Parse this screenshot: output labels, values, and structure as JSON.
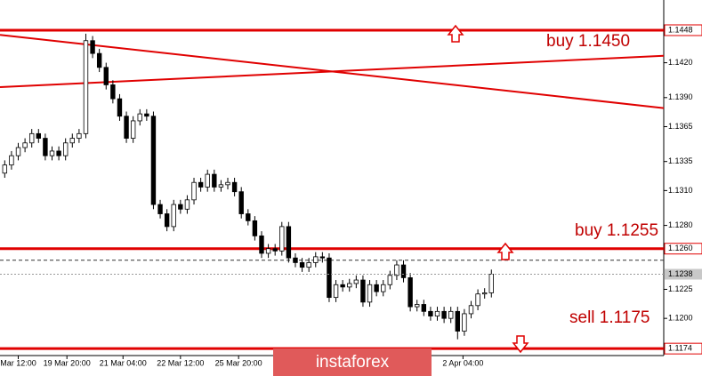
{
  "chart_data": {
    "type": "candlestick",
    "open": [
      1.1325,
      1.1332,
      1.134,
      1.1347,
      1.1351,
      1.1359,
      1.1355,
      1.134,
      1.1344,
      1.134,
      1.1351,
      1.1355,
      1.1359,
      1.1439,
      1.1428,
      1.1416,
      1.1401,
      1.1389,
      1.1374,
      1.1355,
      1.137,
      1.1376,
      1.1374,
      1.1298,
      1.129,
      1.1279,
      1.1298,
      1.1294,
      1.1302,
      1.1317,
      1.1313,
      1.1324,
      1.1313,
      1.1315,
      1.1317,
      1.1309,
      1.129,
      1.1284,
      1.1271,
      1.1256,
      1.126,
      1.1258,
      1.1279,
      1.1252,
      1.1248,
      1.1244,
      1.1248,
      1.1253,
      1.1252,
      1.1218,
      1.1229,
      1.1227,
      1.123,
      1.1233,
      1.1214,
      1.1229,
      1.1223,
      1.1229,
      1.1237,
      1.1246,
      1.1235,
      1.121,
      1.1212,
      1.1206,
      1.1202,
      1.1206,
      1.12,
      1.1206,
      1.1189,
      1.1204,
      1.1211,
      1.1221,
      1.1222
    ],
    "high": [
      1.1336,
      1.1344,
      1.1351,
      1.1355,
      1.1363,
      1.1363,
      1.1359,
      1.1348,
      1.1348,
      1.1355,
      1.1359,
      1.1363,
      1.1445,
      1.1443,
      1.1432,
      1.142,
      1.1405,
      1.1393,
      1.1378,
      1.1374,
      1.138,
      1.138,
      1.1378,
      1.1302,
      1.1294,
      1.1302,
      1.1302,
      1.1306,
      1.1321,
      1.1321,
      1.1328,
      1.1328,
      1.1319,
      1.1321,
      1.1321,
      1.1313,
      1.1294,
      1.1288,
      1.1275,
      1.1264,
      1.1264,
      1.1283,
      1.1283,
      1.1256,
      1.1252,
      1.1252,
      1.1257,
      1.1257,
      1.1256,
      1.1233,
      1.1233,
      1.1234,
      1.1237,
      1.1237,
      1.1233,
      1.1233,
      1.1233,
      1.1241,
      1.125,
      1.125,
      1.1239,
      1.1216,
      1.1216,
      1.121,
      1.121,
      1.121,
      1.121,
      1.121,
      1.1208,
      1.1215,
      1.1225,
      1.1226,
      1.1242
    ],
    "low": [
      1.1321,
      1.1328,
      1.1336,
      1.1343,
      1.1347,
      1.1351,
      1.1336,
      1.1336,
      1.1336,
      1.1336,
      1.1347,
      1.1351,
      1.1355,
      1.1424,
      1.1412,
      1.1397,
      1.1385,
      1.137,
      1.1351,
      1.1351,
      1.1366,
      1.137,
      1.1294,
      1.1286,
      1.1275,
      1.1275,
      1.129,
      1.129,
      1.1298,
      1.1309,
      1.1309,
      1.1309,
      1.1309,
      1.1311,
      1.1305,
      1.1286,
      1.128,
      1.1267,
      1.1252,
      1.1252,
      1.1254,
      1.1254,
      1.1248,
      1.1244,
      1.124,
      1.124,
      1.1244,
      1.1248,
      1.1214,
      1.1214,
      1.1223,
      1.1223,
      1.1226,
      1.121,
      1.121,
      1.1219,
      1.1219,
      1.1225,
      1.1233,
      1.1231,
      1.1206,
      1.1206,
      1.1202,
      1.1198,
      1.1198,
      1.1196,
      1.1196,
      1.1182,
      1.1185,
      1.12,
      1.1207,
      1.1217,
      1.1218
    ],
    "close": [
      1.1332,
      1.134,
      1.1347,
      1.1351,
      1.1359,
      1.1355,
      1.134,
      1.1344,
      1.134,
      1.1351,
      1.1355,
      1.1359,
      1.1439,
      1.1428,
      1.1416,
      1.1401,
      1.1389,
      1.1374,
      1.1355,
      1.137,
      1.1376,
      1.1374,
      1.1298,
      1.129,
      1.1279,
      1.1298,
      1.1294,
      1.1302,
      1.1317,
      1.1313,
      1.1324,
      1.1313,
      1.1315,
      1.1317,
      1.1309,
      1.129,
      1.1284,
      1.1271,
      1.1256,
      1.126,
      1.1258,
      1.1279,
      1.1252,
      1.1248,
      1.1244,
      1.1248,
      1.1253,
      1.1252,
      1.1218,
      1.1229,
      1.1227,
      1.123,
      1.1233,
      1.1214,
      1.1229,
      1.1223,
      1.1229,
      1.1237,
      1.1246,
      1.1235,
      1.121,
      1.1212,
      1.1206,
      1.1202,
      1.1206,
      1.12,
      1.1206,
      1.1189,
      1.1204,
      1.1211,
      1.1221,
      1.1222,
      1.1238
    ],
    "xlim": [
      -0.7,
      97.5
    ],
    "xticks": [
      {
        "value": 2,
        "label": "Mar 12:00"
      },
      {
        "value": 9.2,
        "label": "19 Mar 20:00"
      },
      {
        "value": 17.5,
        "label": "21 Mar 04:00"
      },
      {
        "value": 26,
        "label": "22 Mar 12:00"
      },
      {
        "value": 34.6,
        "label": "25 Mar 20:00"
      },
      {
        "value": 67.8,
        "label": "2 Apr 04:00"
      }
    ],
    "ylim": [
      1.1168,
      1.1474
    ],
    "yticks": [
      {
        "value": 1.142,
        "label": "1.1420"
      },
      {
        "value": 1.139,
        "label": "1.1390"
      },
      {
        "value": 1.1365,
        "label": "1.1365"
      },
      {
        "value": 1.1335,
        "label": "1.1335"
      },
      {
        "value": 1.131,
        "label": "1.1310"
      },
      {
        "value": 1.128,
        "label": "1.1280"
      },
      {
        "value": 1.1225,
        "label": "1.1225"
      },
      {
        "value": 1.12,
        "label": "1.1200"
      }
    ],
    "levels": [
      {
        "value": 1.1448,
        "label": "1.1448"
      },
      {
        "value": 1.126,
        "label": "1.1260"
      },
      {
        "value": 1.1174,
        "label": "1.1174"
      }
    ],
    "current_price": {
      "value": 1.1238,
      "label": "1.1238"
    },
    "dashed_level": 1.125,
    "trendlines": [
      {
        "x": [
          -0.7,
          97.5
        ],
        "y": [
          1.1444,
          1.1381
        ]
      },
      {
        "x": [
          -0.7,
          97.5
        ],
        "y": [
          1.1399,
          1.1426
        ]
      }
    ],
    "annotations": [
      "buy 1.1450",
      "buy 1.1255",
      "sell 1.1175"
    ],
    "watermark": "instaforex",
    "level_color": "#e00000"
  }
}
